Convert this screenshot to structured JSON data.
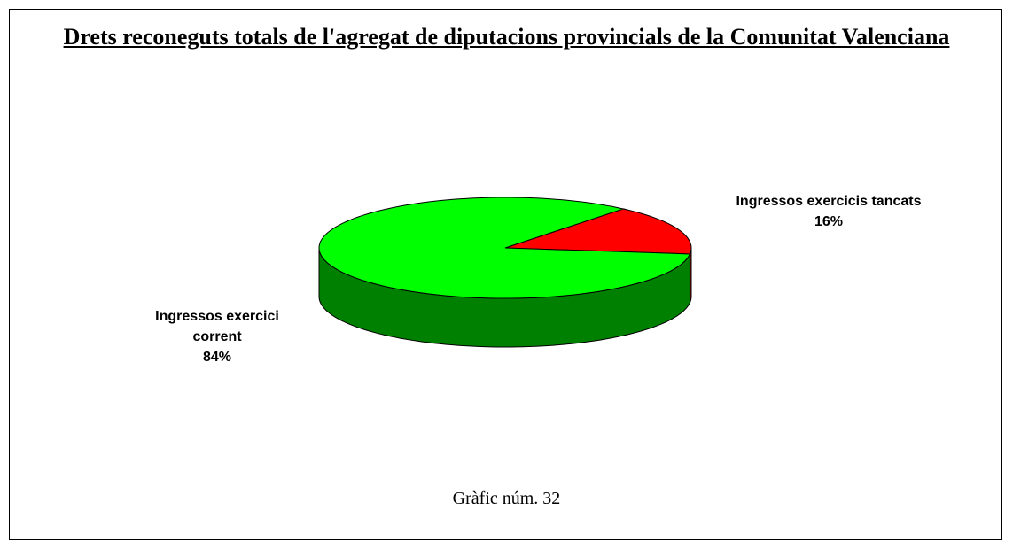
{
  "chart_data": {
    "type": "pie",
    "title": "Drets reconeguts totals de l'agregat de diputacions provincials de la Comunitat Valenciana",
    "categories": [
      "Ingressos exercici corrent",
      "Ingressos exercicis tancats"
    ],
    "values": [
      84,
      16
    ],
    "value_labels": [
      "84%",
      "16%"
    ],
    "colors": [
      "#00ff00",
      "#ff0000"
    ],
    "caption": "Gràfic núm. 32"
  }
}
